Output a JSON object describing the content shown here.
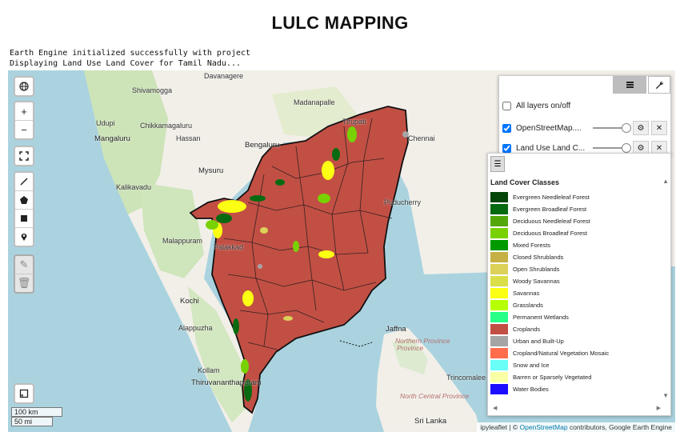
{
  "title": "LULC MAPPING",
  "console": {
    "line1": "Earth Engine initialized successfully with project",
    "line2": "Displaying Land Use Land Cover for Tamil Nadu..."
  },
  "map": {
    "places": [
      {
        "name": "Shivamogga"
      },
      {
        "name": "Davanagere"
      },
      {
        "name": "Madanapalle"
      },
      {
        "name": "Udupi"
      },
      {
        "name": "Chikkamagaluru"
      },
      {
        "name": "Tirupati"
      },
      {
        "name": "Mangaluru"
      },
      {
        "name": "Hassan"
      },
      {
        "name": "Bengaluru"
      },
      {
        "name": "Chennai"
      },
      {
        "name": "Mysuru"
      },
      {
        "name": "Kalikavadu"
      },
      {
        "name": "Puducherry"
      },
      {
        "name": "Malappuram"
      },
      {
        "name": "Palakkad"
      },
      {
        "name": "Kochi"
      },
      {
        "name": "Alappuzha"
      },
      {
        "name": "Jaffna"
      },
      {
        "name": "Northern Province"
      },
      {
        "name": "Kollam"
      },
      {
        "name": "Trincomalee"
      },
      {
        "name": "Thiruvananthapuram"
      },
      {
        "name": "North Central Province"
      },
      {
        "name": "Sri Lanka"
      }
    ],
    "sea_label": "Province",
    "scale_km": "100 km",
    "scale_mi": "50 mi",
    "attribution_prefix": "ipyleaflet | ©",
    "attribution_link": "OpenStreetMap",
    "attribution_suffix": "contributors, Google Earth Engine"
  },
  "layers_panel": {
    "all_layers": "All layers on/off",
    "layer1": "OpenStreetMap....",
    "layer2": "Land Use Land C...",
    "all_checked": false,
    "layer1_checked": true,
    "layer2_checked": true
  },
  "legend": {
    "title": "Land Cover Classes",
    "items": [
      {
        "label": "Evergreen Needleleaf Forest",
        "color": "#05450a"
      },
      {
        "label": "Evergreen Broadleaf Forest",
        "color": "#086a10"
      },
      {
        "label": "Deciduous Needleleaf Forest",
        "color": "#54a708"
      },
      {
        "label": "Deciduous Broadleaf Forest",
        "color": "#78d203"
      },
      {
        "label": "Mixed Forests",
        "color": "#009900"
      },
      {
        "label": "Closed Shrublands",
        "color": "#c6b044"
      },
      {
        "label": "Open Shrublands",
        "color": "#dcd159"
      },
      {
        "label": "Woody Savannas",
        "color": "#dade48"
      },
      {
        "label": "Savannas",
        "color": "#fbff13"
      },
      {
        "label": "Grasslands",
        "color": "#b6ff05"
      },
      {
        "label": "Permanent Wetlands",
        "color": "#27ff87"
      },
      {
        "label": "Croplands",
        "color": "#c24f44"
      },
      {
        "label": "Urban and Built-Up",
        "color": "#a5a5a5"
      },
      {
        "label": "Cropland/Natural Vegetation Mosaic",
        "color": "#ff6d4c"
      },
      {
        "label": "Snow and Ice",
        "color": "#69fff8"
      },
      {
        "label": "Barren or Sparsely Vegetated",
        "color": "#f9ffa4"
      },
      {
        "label": "Water Bodies",
        "color": "#1c0dff"
      }
    ]
  }
}
